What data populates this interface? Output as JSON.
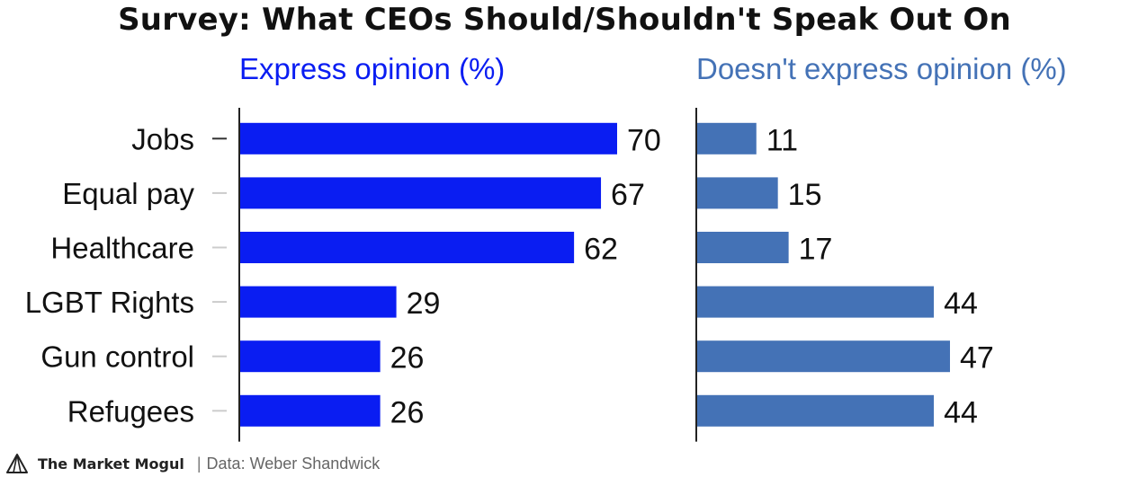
{
  "title": "Survey: What CEOs Should/Shouldn't Speak Out On",
  "colors": {
    "express": "#0a1df2",
    "not_express": "#4472b6",
    "text": "#111111",
    "axis": "#222222"
  },
  "chart_data": [
    {
      "type": "bar",
      "orientation": "horizontal",
      "title": "Express opinion (%)",
      "categories": [
        "Jobs",
        "Equal pay",
        "Healthcare",
        "LGBT Rights",
        "Gun control",
        "Refugees"
      ],
      "values": [
        70,
        67,
        62,
        29,
        26,
        26
      ],
      "xlim": [
        0,
        70
      ]
    },
    {
      "type": "bar",
      "orientation": "horizontal",
      "title": "Doesn't express opinion (%)",
      "categories": [
        "Jobs",
        "Equal pay",
        "Healthcare",
        "LGBT Rights",
        "Gun control",
        "Refugees"
      ],
      "values": [
        11,
        15,
        17,
        44,
        47,
        44
      ],
      "xlim": [
        0,
        47
      ]
    }
  ],
  "footer": {
    "logo_icon": "market-mogul-logo-icon",
    "brand": "The Market Mogul",
    "separator": "|",
    "source": "Data: Weber Shandwick"
  }
}
